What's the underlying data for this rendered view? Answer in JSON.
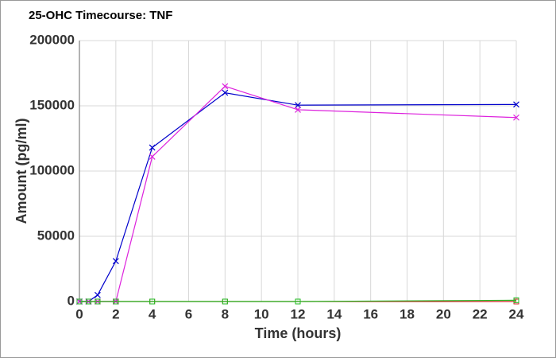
{
  "chart_data": {
    "type": "line",
    "title": "25-OHC Timecourse: TNF",
    "xlabel": "Time (hours)",
    "ylabel": "Amount (pg/ml)",
    "x": [
      0,
      0.5,
      1,
      2,
      4,
      8,
      12,
      24
    ],
    "series": [
      {
        "color": "#0000cc",
        "marker": "x",
        "values": [
          0,
          0,
          5000,
          31000,
          118000,
          160000,
          150500,
          151000
        ]
      },
      {
        "color": "#dd22dd",
        "marker": "x",
        "values": [
          0,
          0,
          0,
          0,
          111000,
          165000,
          147000,
          141000
        ]
      },
      {
        "color": "#cc2222",
        "marker": "square",
        "values": [
          0,
          0,
          0,
          0,
          0,
          0,
          0,
          0
        ]
      },
      {
        "color": "#22bb22",
        "marker": "square",
        "values": [
          0,
          0,
          0,
          0,
          0,
          0,
          0,
          1000
        ]
      }
    ],
    "xlim": [
      0,
      24
    ],
    "xticks": [
      0,
      2,
      4,
      6,
      8,
      10,
      12,
      14,
      16,
      18,
      20,
      22,
      24
    ],
    "ylim": [
      0,
      200000
    ],
    "yticks": [
      0,
      50000,
      100000,
      150000,
      200000
    ],
    "grid": true
  }
}
